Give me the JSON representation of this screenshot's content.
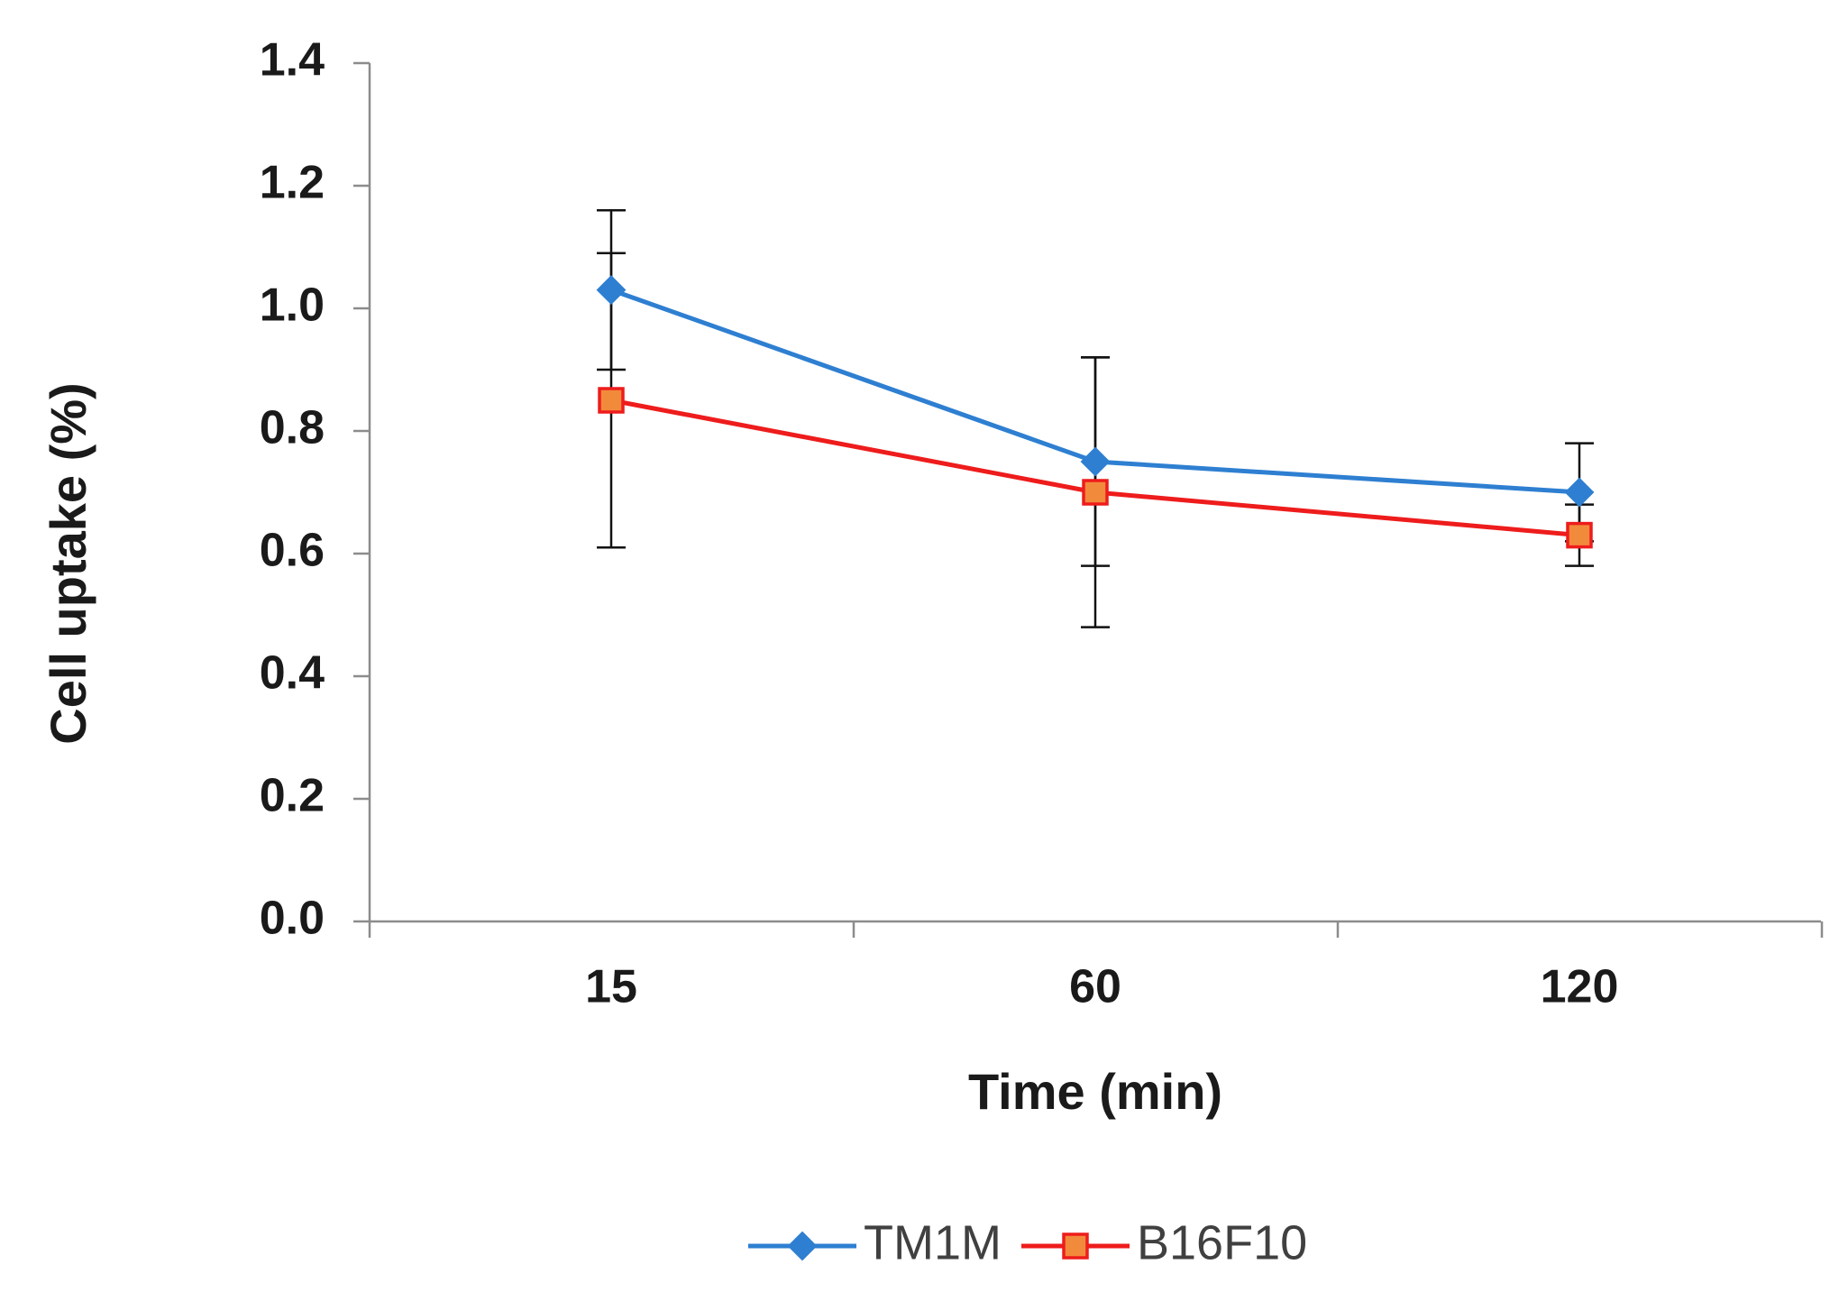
{
  "chart_data": {
    "type": "line",
    "categories": [
      "15",
      "60",
      "120"
    ],
    "xlabel": "Time (min)",
    "ylabel": "Cell uptake (%)",
    "ylim": [
      0,
      1.4
    ],
    "yticks": [
      "0.0",
      "0.2",
      "0.4",
      "0.6",
      "0.8",
      "1.0",
      "1.2",
      "1.4"
    ],
    "grid": false,
    "legend_position": "bottom",
    "series": [
      {
        "name": "TM1M",
        "values": [
          1.03,
          0.75,
          0.7
        ],
        "errors": [
          0.13,
          0.17,
          0.08
        ],
        "color": "#2e7fd1",
        "marker": "diamond"
      },
      {
        "name": "B16F10",
        "values": [
          0.85,
          0.7,
          0.63
        ],
        "errors": [
          0.24,
          0.22,
          0.05
        ],
        "color": "#ee1c1c",
        "marker": "square",
        "marker_fill": "#f28a3c"
      }
    ]
  }
}
